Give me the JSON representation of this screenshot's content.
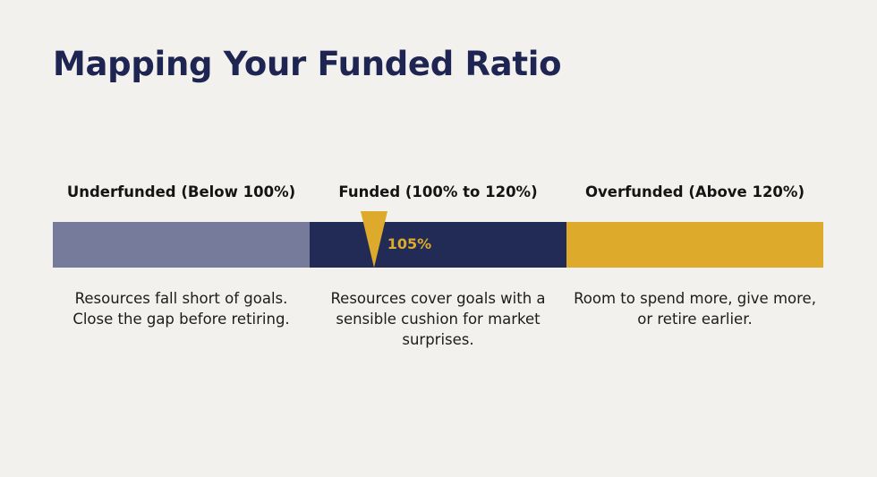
{
  "title": "Mapping Your Funded Ratio",
  "zones": [
    {
      "label": "Underfunded (Below 100%)",
      "description": "Resources fall short of goals. Close the gap before retiring.",
      "color": "#767b9b"
    },
    {
      "label": "Funded (100% to 120%)",
      "description": "Resources cover goals with a sensible cushion for market surprises.",
      "color": "#222a56"
    },
    {
      "label": "Overfunded (Above 120%)",
      "description": "Room to spend more, give more, or retire earlier.",
      "color": "#ddaa2b"
    }
  ],
  "marker": {
    "label": "105%",
    "value": 105,
    "color": "#ddaa2b"
  }
}
